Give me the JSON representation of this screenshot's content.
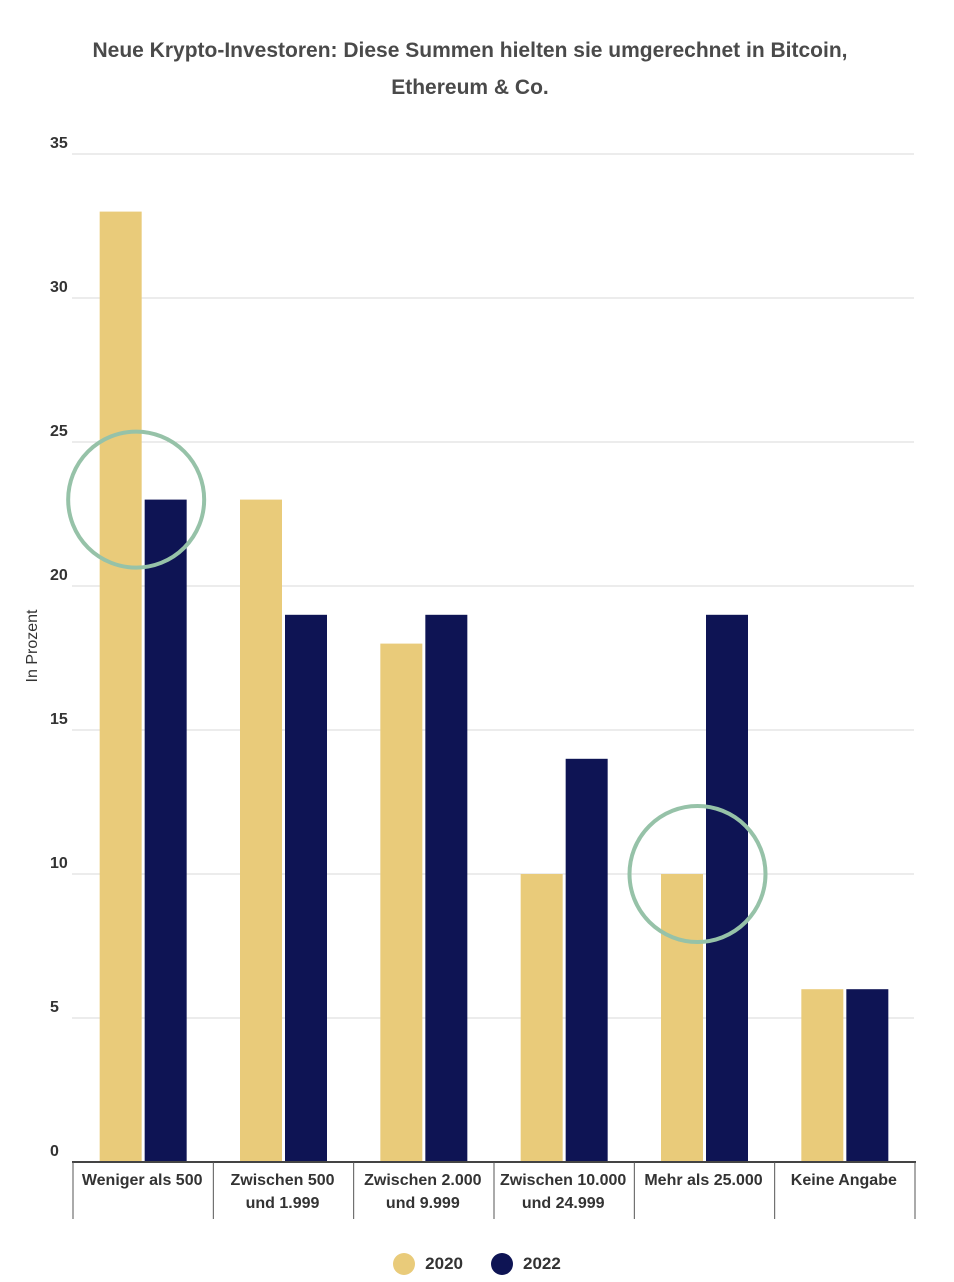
{
  "chart_data": {
    "type": "bar",
    "title_line1": "Neue Krypto-Investoren: Diese Summen hielten sie umgerechnet in Bitcoin,",
    "title_line2": "Ethereum & Co.",
    "ylabel": "In Prozent",
    "xlabel": "",
    "ylim": [
      0,
      35
    ],
    "yticks": [
      0,
      5,
      10,
      15,
      20,
      25,
      30,
      35
    ],
    "grid": true,
    "legend_position": "bottom",
    "categories": [
      [
        "Weniger als 500"
      ],
      [
        "Zwischen 500",
        "und 1.999"
      ],
      [
        "Zwischen 2.000",
        "und 9.999"
      ],
      [
        "Zwischen 10.000",
        "und 24.999"
      ],
      [
        "Mehr als 25.000"
      ],
      [
        "Keine Angabe"
      ]
    ],
    "series": [
      {
        "name": "2020",
        "color": "#e9cb7a",
        "values": [
          33,
          23,
          18,
          10,
          10,
          6
        ]
      },
      {
        "name": "2022",
        "color": "#0e1454",
        "values": [
          23,
          19,
          19,
          14,
          19,
          6
        ]
      }
    ],
    "annotations": [
      {
        "type": "circle-highlight",
        "category_index": 0,
        "value": 23,
        "color": "#96c2a8"
      },
      {
        "type": "circle-highlight",
        "category_index": 4,
        "value": 10,
        "color": "#96c2a8"
      }
    ]
  }
}
